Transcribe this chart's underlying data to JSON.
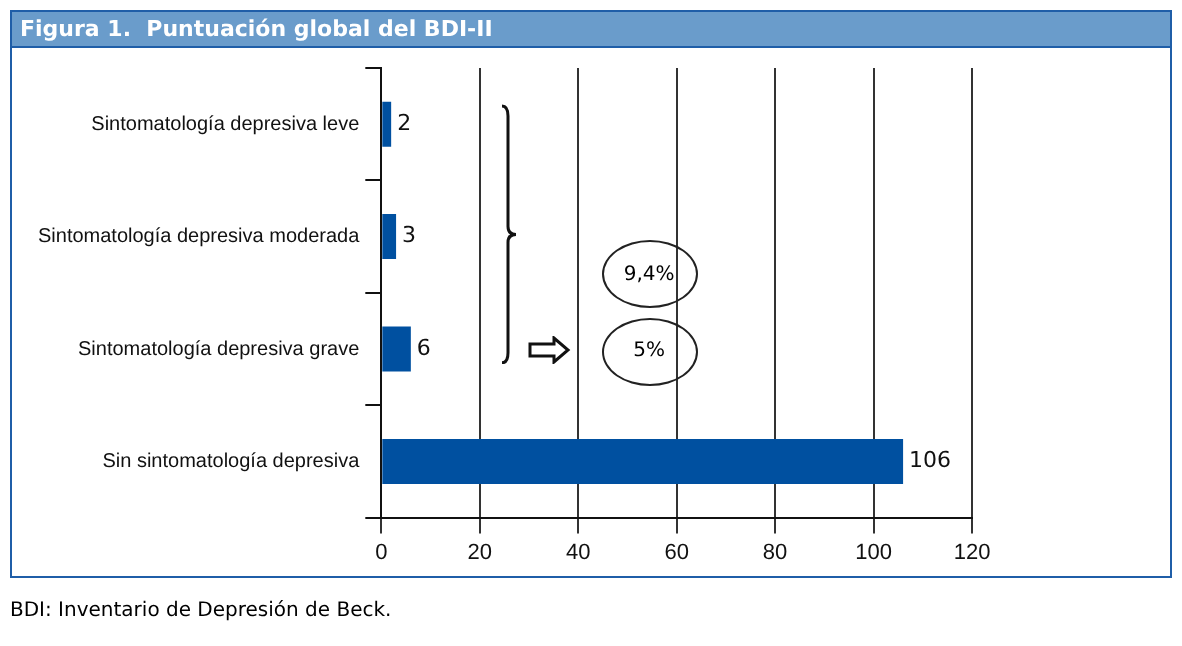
{
  "chart_data": {
    "type": "bar",
    "orientation": "horizontal",
    "title": "Figura 1.  Puntuación global del BDI-II",
    "categories": [
      "Sintomatología depresiva leve",
      "Sintomatología depresiva moderada",
      "Sintomatología depresiva grave",
      "Sin sintomatología depresiva"
    ],
    "values": [
      2,
      3,
      6,
      106
    ],
    "color": "#0050a0",
    "data_labels": true,
    "xlim": [
      0,
      120
    ],
    "xticks": [
      0,
      20,
      40,
      60,
      80,
      100,
      120
    ],
    "grid": "x",
    "annotations": [
      "9,4%",
      "5%",
      "BDI: Inventario de Depresión de Beck."
    ]
  }
}
